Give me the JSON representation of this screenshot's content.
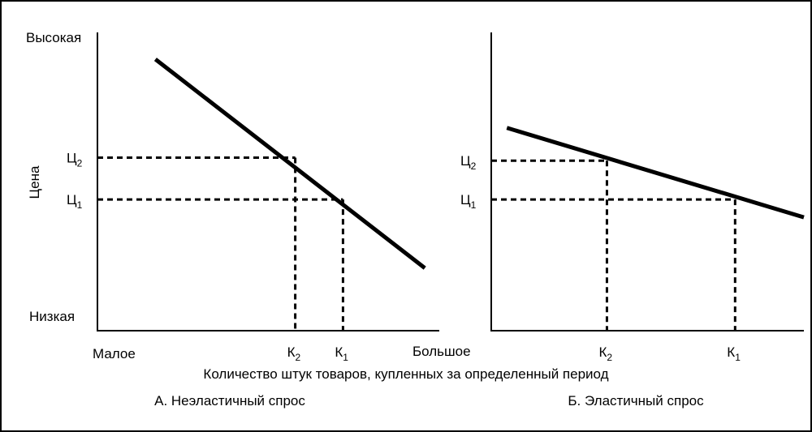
{
  "figure": {
    "price_axis_label": "Цена",
    "price_high": "Высокая",
    "price_low": "Низкая",
    "qty_low": "Малое",
    "qty_high": "Большое",
    "x_axis_title": "Количество штук товаров, купленных за определенный период"
  },
  "chart_data": [
    {
      "type": "line",
      "title": "А. Неэластичный спрос",
      "ylabel": "Цена",
      "x_range_labels": [
        "Малое",
        "Большое"
      ],
      "y_range_labels": [
        "Низкая",
        "Высокая"
      ],
      "xlim": [
        0,
        100
      ],
      "ylim": [
        0,
        100
      ],
      "series": [
        {
          "points": [
            [
              17,
              91
            ],
            [
              96,
              21
            ]
          ]
        }
      ],
      "reference_points": [
        {
          "x_label": "К",
          "x_sub": "2",
          "y_label": "Ц",
          "y_sub": "2",
          "x": 58,
          "y": 58
        },
        {
          "x_label": "К",
          "x_sub": "1",
          "y_label": "Ц",
          "y_sub": "1",
          "x": 72,
          "y": 44
        }
      ],
      "grid": false,
      "line_color": "#000000"
    },
    {
      "type": "line",
      "title": "Б. Эластичный спрос",
      "ylabel": "",
      "xlim": [
        0,
        100
      ],
      "ylim": [
        0,
        100
      ],
      "series": [
        {
          "points": [
            [
              5,
              68
            ],
            [
              100,
              38
            ]
          ]
        }
      ],
      "reference_points": [
        {
          "x_label": "К",
          "x_sub": "2",
          "y_label": "Ц",
          "y_sub": "2",
          "x": 37,
          "y": 57
        },
        {
          "x_label": "К",
          "x_sub": "1",
          "y_label": "Ц",
          "y_sub": "1",
          "x": 78,
          "y": 44
        }
      ],
      "grid": false,
      "line_color": "#000000"
    }
  ]
}
